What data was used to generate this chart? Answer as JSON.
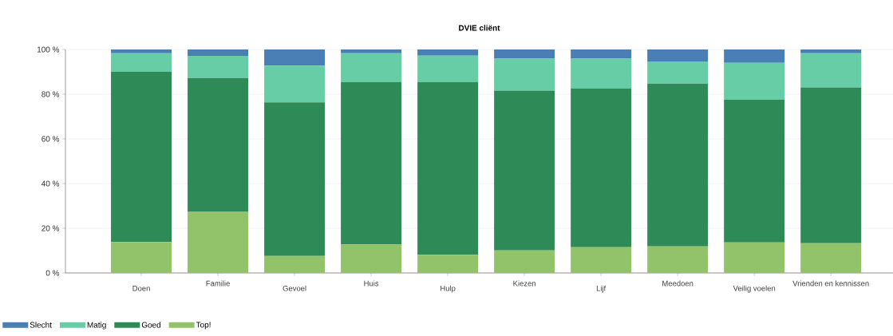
{
  "chart_data": {
    "type": "bar",
    "title": "DVIE cliënt",
    "stacked": true,
    "categories": [
      "Doen",
      "Familie",
      "Gevoel",
      "Huis",
      "Hulp",
      "Kiezen",
      "Lijf",
      "Meedoen",
      "Veilig voelen",
      "Vrienden en kennissen"
    ],
    "series": [
      {
        "name": "Top!",
        "color": "#92c26a",
        "values": [
          13.8,
          27.3,
          7.6,
          12.8,
          8.1,
          10.1,
          11.5,
          11.9,
          13.7,
          13.3
        ]
      },
      {
        "name": "Goed",
        "color": "#2e8b57",
        "values": [
          76.2,
          59.9,
          68.7,
          72.6,
          77.3,
          71.5,
          71.0,
          72.8,
          63.8,
          69.7
        ]
      },
      {
        "name": "Matig",
        "color": "#66cda6",
        "values": [
          8.3,
          9.9,
          16.5,
          12.9,
          11.8,
          14.3,
          13.4,
          9.9,
          16.5,
          15.3
        ]
      },
      {
        "name": "Slecht",
        "color": "#4a7fb5",
        "values": [
          1.7,
          2.9,
          7.2,
          1.7,
          2.8,
          4.1,
          4.1,
          5.4,
          6.0,
          1.7
        ]
      }
    ],
    "ylim": [
      0,
      100
    ],
    "yticks": [
      {
        "value": 0,
        "label": "0 %"
      },
      {
        "value": 20,
        "label": "20 %"
      },
      {
        "value": 40,
        "label": "40 %"
      },
      {
        "value": 60,
        "label": "60 %"
      },
      {
        "value": 80,
        "label": "80 %"
      },
      {
        "value": 100,
        "label": "100 %"
      }
    ],
    "grid": "y",
    "legend": "bottom left"
  }
}
